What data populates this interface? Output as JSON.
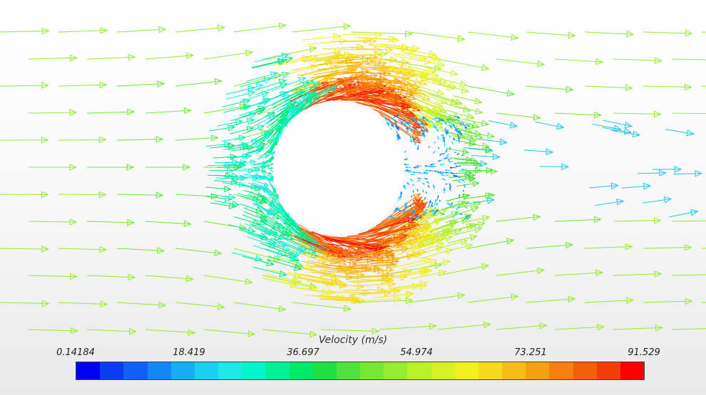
{
  "legend": {
    "title": "Velocity (m/s)",
    "ticks": [
      "0.14184",
      "18.419",
      "36.697",
      "54.974",
      "73.251",
      "91.529"
    ],
    "colors": [
      "#0000ee",
      "#0a3cf2",
      "#1060f5",
      "#1487f5",
      "#18aef5",
      "#1ccff2",
      "#20e8e8",
      "#00f5cc",
      "#00f09a",
      "#00e86a",
      "#1ee040",
      "#4ee23a",
      "#74e835",
      "#96ec30",
      "#b8f02a",
      "#d6f225",
      "#f0f020",
      "#f8d81c",
      "#f8bc16",
      "#f89e12",
      "#f8800e",
      "#f4600a",
      "#f03e06",
      "#ff0000"
    ]
  },
  "scene": {
    "cylinder_fill": "#ffffff",
    "freestream_color": "#8ee02c",
    "wake_color": "#22c8e8"
  }
}
